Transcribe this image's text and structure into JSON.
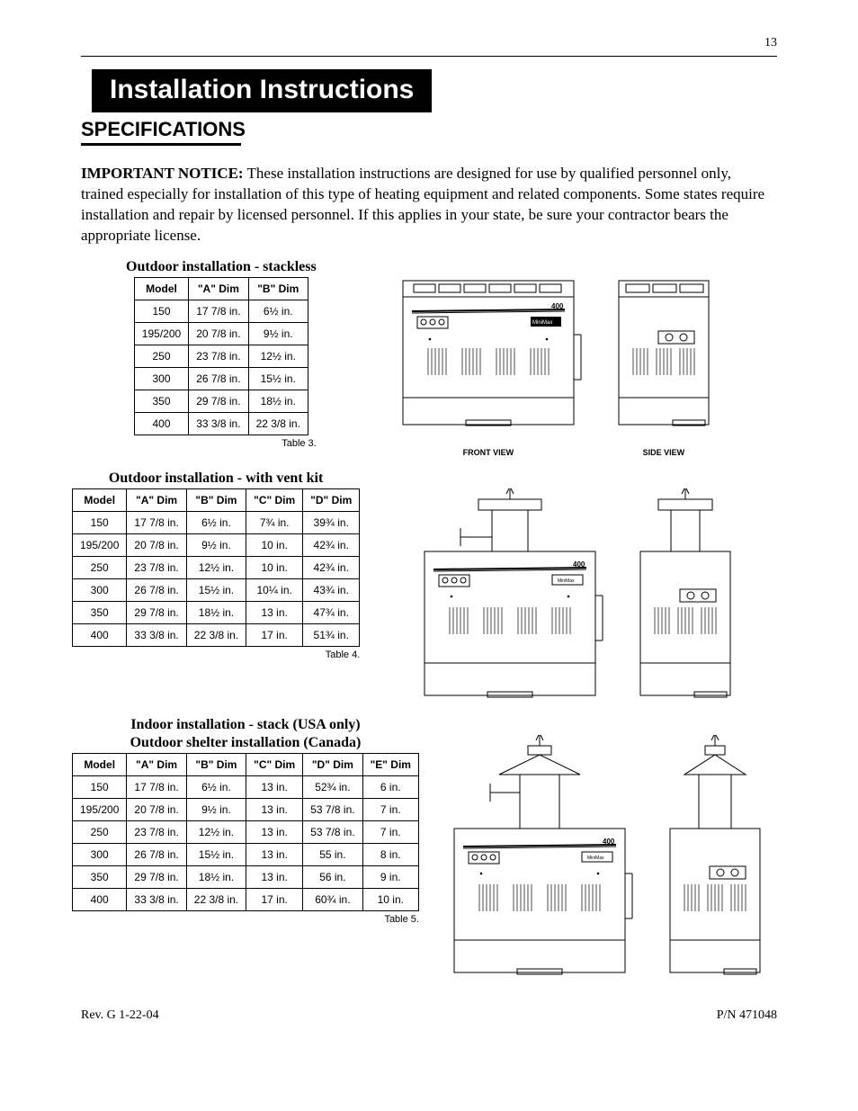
{
  "page_number": "13",
  "banner": "Installation Instructions",
  "section_title": "SPECIFICATIONS",
  "notice_bold": "IMPORTANT NOTICE:",
  "notice_text": "  These installation instructions are designed for use by qualified personnel only, trained especially for installation of this type of heating equipment and related components. Some states require installation and repair by licensed personnel.  If this applies in your state, be sure your contractor bears the appropriate license.",
  "table3": {
    "title": "Outdoor installation - stackless",
    "caption": "Table 3.",
    "columns": [
      "Model",
      "\"A\" Dim",
      "\"B\" Dim"
    ],
    "rows": [
      [
        "150",
        "17 7/8 in.",
        "6½ in."
      ],
      [
        "195/200",
        "20 7/8 in.",
        "9½ in."
      ],
      [
        "250",
        "23 7/8 in.",
        "12½ in."
      ],
      [
        "300",
        "26 7/8 in.",
        "15½ in."
      ],
      [
        "350",
        "29 7/8 in.",
        "18½ in."
      ],
      [
        "400",
        "33 3/8 in.",
        "22 3/8 in."
      ]
    ]
  },
  "table4": {
    "title": "Outdoor installation - with vent kit",
    "caption": "Table 4.",
    "columns": [
      "Model",
      "\"A\" Dim",
      "\"B\" Dim",
      "\"C\" Dim",
      "\"D\" Dim"
    ],
    "rows": [
      [
        "150",
        "17 7/8 in.",
        "6½ in.",
        "7¾ in.",
        "39¾ in."
      ],
      [
        "195/200",
        "20 7/8 in.",
        "9½ in.",
        "10 in.",
        "42¾ in."
      ],
      [
        "250",
        "23 7/8 in.",
        "12½ in.",
        "10 in.",
        "42¾ in."
      ],
      [
        "300",
        "26 7/8 in.",
        "15½ in.",
        "10¼ in.",
        "43¾ in."
      ],
      [
        "350",
        "29 7/8 in.",
        "18½ in.",
        "13 in.",
        "47¾ in."
      ],
      [
        "400",
        "33 3/8 in.",
        "22 3/8 in.",
        "17 in.",
        "51¾ in."
      ]
    ]
  },
  "table5": {
    "title_line1": "Indoor installation - stack (USA only)",
    "title_line2": "Outdoor shelter installation (Canada)",
    "caption": "Table 5.",
    "columns": [
      "Model",
      "\"A\" Dim",
      "\"B\" Dim",
      "\"C\" Dim",
      "\"D\" Dim",
      "\"E\" Dim"
    ],
    "rows": [
      [
        "150",
        "17 7/8 in.",
        "6½ in.",
        "13 in.",
        "52¾ in.",
        "6 in."
      ],
      [
        "195/200",
        "20 7/8 in.",
        "9½ in.",
        "13 in.",
        "53 7/8 in.",
        "7 in."
      ],
      [
        "250",
        "23 7/8 in.",
        "12½ in.",
        "13 in.",
        "53 7/8 in.",
        "7 in."
      ],
      [
        "300",
        "26 7/8 in.",
        "15½ in.",
        "13 in.",
        "55 in.",
        "8 in."
      ],
      [
        "350",
        "29 7/8 in.",
        "18½ in.",
        "13 in.",
        "56 in.",
        "9 in."
      ],
      [
        "400",
        "33 3/8 in.",
        "22 3/8 in.",
        "17 in.",
        "60¾ in.",
        "10 in."
      ]
    ]
  },
  "diagrams": {
    "front_view": "FRONT VIEW",
    "side_view": "SIDE VIEW",
    "model_label": "400",
    "brand_label": "MiniMax"
  },
  "footer_left": "Rev. G  1-22-04",
  "footer_right": "P/N  471048"
}
